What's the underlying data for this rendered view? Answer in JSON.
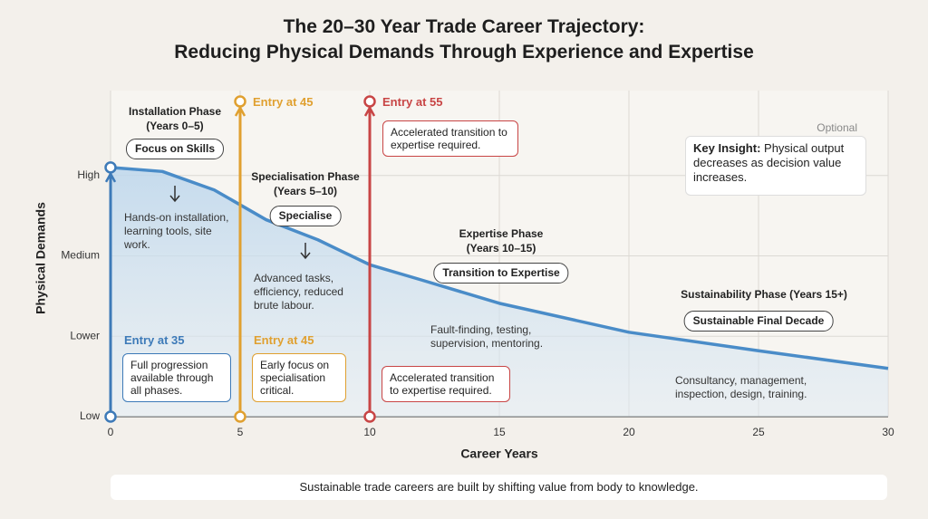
{
  "chart_data": {
    "type": "line",
    "title": "The 20–30 Year Trade Career Trajectory:",
    "subtitle": "Reducing Physical Demands Through Experience and Expertise",
    "x_label": "Career Years",
    "y_label": "Physical Demands",
    "x": [
      0,
      2,
      4,
      6,
      8,
      10,
      12,
      15,
      20,
      25,
      30
    ],
    "values": [
      3.1,
      3.05,
      2.82,
      2.45,
      2.2,
      1.89,
      1.7,
      1.41,
      1.05,
      0.82,
      0.6
    ],
    "color": "#4a8cc8",
    "xlim": [
      0,
      30
    ],
    "xticks": [
      0,
      5,
      10,
      15,
      20,
      25,
      30
    ],
    "ylim": [
      0,
      4
    ],
    "yticks": [
      {
        "value": 0,
        "label": "Low"
      },
      {
        "value": 1,
        "label": "Lower"
      },
      {
        "value": 2,
        "label": "Medium"
      },
      {
        "value": 3,
        "label": "High"
      }
    ],
    "grid": true,
    "entry_lines": [
      {
        "x": 0,
        "color": "#3d7ab8",
        "bottom_label": "Entry at 35",
        "bottom_note": "Full progression available through all phases."
      },
      {
        "x": 5,
        "color": "#e0a030",
        "top_label": "Entry at 45",
        "bottom_label": "Entry at 45",
        "bottom_note": "Early focus on specialisation critical."
      },
      {
        "x": 10,
        "color": "#c84545",
        "top_label": "Entry at 55",
        "top_note": "Accelerated transition to expertise required.",
        "bottom_note": "Accelerated transition to expertise required."
      }
    ],
    "phases": [
      {
        "title": "Installation Phase",
        "years": "(Years 0–5)",
        "badge": "Focus on Skills",
        "description": "Hands-on installation, learning tools, site work."
      },
      {
        "title": "Specialisation Phase",
        "years": "(Years 5–10)",
        "badge": "Specialise",
        "description": "Advanced tasks, efficiency, reduced brute labour."
      },
      {
        "title": "Expertise Phase",
        "years": "(Years 10–15)",
        "badge": "Transition to Expertise",
        "description": "Fault-finding, testing, supervision, mentoring."
      },
      {
        "title": "Sustainability Phase (Years 15+)",
        "badge": "Sustainable Final Decade",
        "description": "Consultancy, management, inspection, design, training."
      }
    ],
    "insight": {
      "optional": "Optional",
      "heading": "Key Insight:",
      "text": "Physical output decreases as decision value increases."
    },
    "footer": "Sustainable trade careers are built by shifting value from body to knowledge."
  }
}
